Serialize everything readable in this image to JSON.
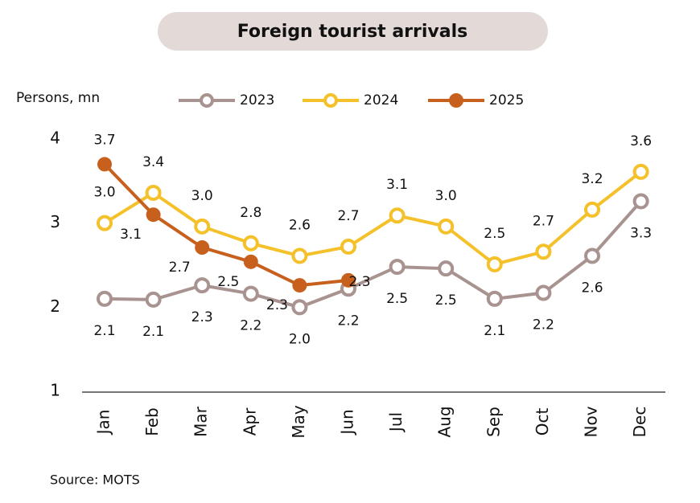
{
  "chart_data": {
    "type": "line",
    "title": "Foreign tourist arrivals",
    "y_label": "Persons, mn",
    "source": "Source: MOTS",
    "categories": [
      "Jan",
      "Feb",
      "Mar",
      "Apr",
      "May",
      "Jun",
      "Jul",
      "Aug",
      "Sep",
      "Oct",
      "Nov",
      "Dec"
    ],
    "series": [
      {
        "name": "2023",
        "color": "#a89390",
        "marker": "hollow",
        "values": [
          2.1,
          2.09,
          2.26,
          2.16,
          2.0,
          2.22,
          2.48,
          2.46,
          2.1,
          2.17,
          2.61,
          3.26
        ],
        "value_labels": [
          "2.1",
          "2.1",
          "2.3",
          "2.2",
          "2.0",
          "2.2",
          "2.5",
          "2.5",
          "2.1",
          "2.2",
          "2.6",
          "3.3"
        ]
      },
      {
        "name": "2024",
        "color": "#f4c12a",
        "marker": "hollow",
        "values": [
          3.0,
          3.36,
          2.96,
          2.76,
          2.61,
          2.72,
          3.09,
          2.96,
          2.51,
          2.66,
          3.16,
          3.61
        ],
        "value_labels": [
          "3.0",
          "3.4",
          "3.0",
          "2.8",
          "2.6",
          "2.7",
          "3.1",
          "3.0",
          "2.5",
          "2.7",
          "3.2",
          "3.6"
        ]
      },
      {
        "name": "2025",
        "color": "#c8601d",
        "marker": "filled",
        "values": [
          3.7,
          3.1,
          2.71,
          2.54,
          2.26,
          2.32,
          null,
          null,
          null,
          null,
          null,
          null
        ],
        "value_labels": [
          "3.7",
          "3.1",
          "2.7",
          "2.5",
          "2.3",
          "2.3",
          null,
          null,
          null,
          null,
          null,
          null
        ]
      }
    ],
    "ylim": [
      1,
      4
    ],
    "yticks": [
      1,
      2,
      3,
      4
    ],
    "grid": false
  }
}
